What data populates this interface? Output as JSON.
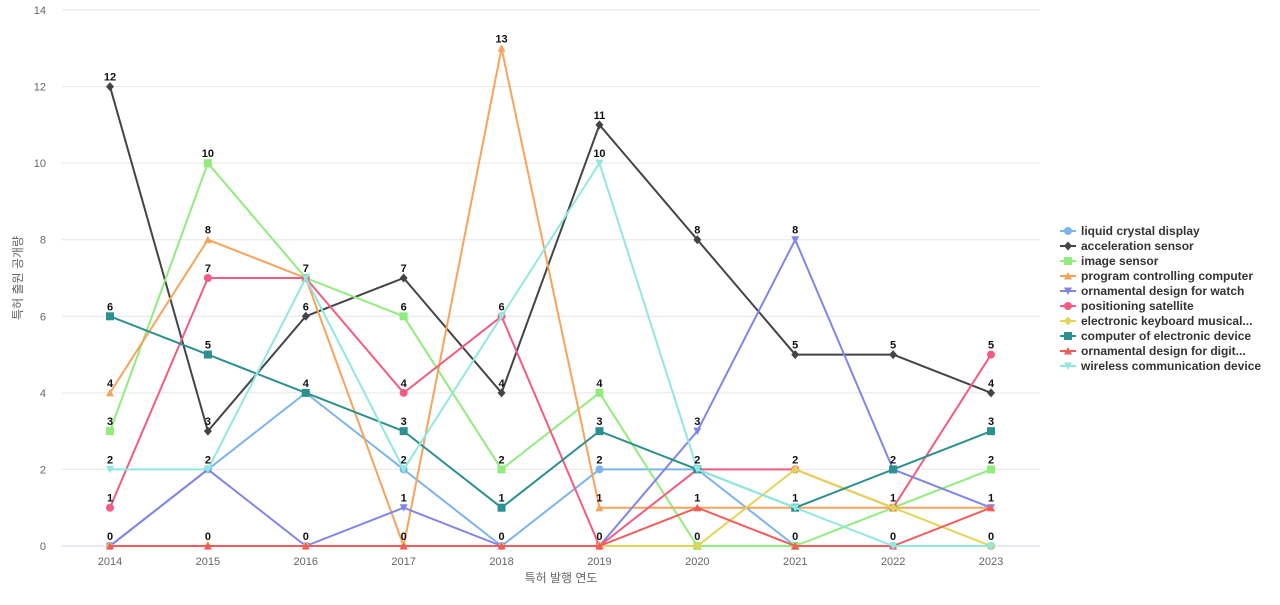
{
  "chart_data": {
    "type": "line",
    "title": "",
    "xlabel": "특허 발행 연도",
    "ylabel": "특허 출원 공개량",
    "ylim": [
      0,
      14
    ],
    "yticks": [
      0,
      2,
      4,
      6,
      8,
      10,
      12,
      14
    ],
    "x": [
      "2014",
      "2015",
      "2016",
      "2017",
      "2018",
      "2019",
      "2020",
      "2021",
      "2022",
      "2023"
    ],
    "grid": true,
    "legend_position": "right",
    "series": [
      {
        "name": "liquid crystal display",
        "legend_label": "liquid crystal display",
        "color": "#7cb5ec",
        "marker": "circle",
        "values": [
          0,
          2,
          4,
          2,
          0,
          2,
          2,
          0,
          0,
          0
        ]
      },
      {
        "name": "acceleration sensor",
        "legend_label": "acceleration sensor",
        "color": "#434348",
        "marker": "diamond",
        "values": [
          12,
          3,
          6,
          7,
          4,
          11,
          8,
          5,
          5,
          4
        ]
      },
      {
        "name": "image sensor",
        "legend_label": "image sensor",
        "color": "#90ed7d",
        "marker": "square",
        "values": [
          3,
          10,
          7,
          6,
          2,
          4,
          0,
          0,
          1,
          2
        ]
      },
      {
        "name": "program controlling computer",
        "legend_label": "program controlling computer",
        "color": "#f7a35c",
        "marker": "triangle",
        "values": [
          4,
          8,
          7,
          0,
          13,
          1,
          1,
          1,
          1,
          1
        ]
      },
      {
        "name": "ornamental design for watch",
        "legend_label": "ornamental design for watch",
        "color": "#8085e9",
        "marker": "triangle-down",
        "values": [
          0,
          2,
          0,
          1,
          0,
          0,
          3,
          8,
          2,
          1
        ]
      },
      {
        "name": "positioning satellite",
        "legend_label": "positioning satellite",
        "color": "#f15c80",
        "marker": "circle",
        "values": [
          1,
          7,
          7,
          4,
          6,
          0,
          2,
          2,
          1,
          5
        ]
      },
      {
        "name": "electronic keyboard musical...",
        "legend_label": "electronic keyboard musical...",
        "color": "#e4d354",
        "marker": "diamond",
        "values": [
          0,
          0,
          0,
          0,
          0,
          0,
          0,
          2,
          1,
          0
        ]
      },
      {
        "name": "computer of electronic device",
        "legend_label": "computer of electronic device",
        "color": "#2b908f",
        "marker": "square",
        "values": [
          6,
          5,
          4,
          3,
          1,
          3,
          2,
          1,
          2,
          3
        ]
      },
      {
        "name": "ornamental design for digit...",
        "legend_label": "ornamental design for digit...",
        "color": "#f45b5b",
        "marker": "triangle",
        "values": [
          0,
          0,
          0,
          0,
          0,
          0,
          1,
          0,
          0,
          1
        ]
      },
      {
        "name": "wireless communication device",
        "legend_label": "wireless communication device",
        "color": "#91e8e1",
        "marker": "triangle-down",
        "values": [
          2,
          2,
          7,
          2,
          6,
          10,
          2,
          1,
          0,
          0
        ]
      }
    ],
    "data_labels": [
      {
        "x": "2014",
        "series": "acceleration sensor",
        "text": "12"
      },
      {
        "x": "2014",
        "series": "computer of electronic device",
        "text": "6"
      },
      {
        "x": "2014",
        "series": "program controlling computer",
        "text": "4"
      },
      {
        "x": "2014",
        "series": "image sensor",
        "text": "3"
      },
      {
        "x": "2014",
        "series": "wireless communication device",
        "text": "2"
      },
      {
        "x": "2014",
        "series": "positioning satellite",
        "text": "1"
      },
      {
        "x": "2014",
        "series": "ornamental design for watch",
        "text": "0"
      },
      {
        "x": "2015",
        "series": "image sensor",
        "text": "10"
      },
      {
        "x": "2015",
        "series": "program controlling computer",
        "text": "8"
      },
      {
        "x": "2015",
        "series": "positioning satellite",
        "text": "7"
      },
      {
        "x": "2015",
        "series": "computer of electronic device",
        "text": "5"
      },
      {
        "x": "2015",
        "series": "acceleration sensor",
        "text": "3"
      },
      {
        "x": "2015",
        "series": "liquid crystal display",
        "text": "2"
      },
      {
        "x": "2015",
        "series": "electronic keyboard musical...",
        "text": "0"
      },
      {
        "x": "2016",
        "series": "image sensor",
        "text": "7"
      },
      {
        "x": "2016",
        "series": "acceleration sensor",
        "text": "6"
      },
      {
        "x": "2016",
        "series": "liquid crystal display",
        "text": "4"
      },
      {
        "x": "2016",
        "series": "ornamental design for watch",
        "text": "0"
      },
      {
        "x": "2017",
        "series": "acceleration sensor",
        "text": "7"
      },
      {
        "x": "2017",
        "series": "image sensor",
        "text": "6"
      },
      {
        "x": "2017",
        "series": "positioning satellite",
        "text": "4"
      },
      {
        "x": "2017",
        "series": "computer of electronic device",
        "text": "3"
      },
      {
        "x": "2017",
        "series": "liquid crystal display",
        "text": "2"
      },
      {
        "x": "2017",
        "series": "ornamental design for watch",
        "text": "1"
      },
      {
        "x": "2017",
        "series": "program controlling computer",
        "text": "0"
      },
      {
        "x": "2018",
        "series": "program controlling computer",
        "text": "13"
      },
      {
        "x": "2018",
        "series": "positioning satellite",
        "text": "6"
      },
      {
        "x": "2018",
        "series": "acceleration sensor",
        "text": "4"
      },
      {
        "x": "2018",
        "series": "image sensor",
        "text": "2"
      },
      {
        "x": "2018",
        "series": "computer of electronic device",
        "text": "1"
      },
      {
        "x": "2018",
        "series": "liquid crystal display",
        "text": "0"
      },
      {
        "x": "2019",
        "series": "acceleration sensor",
        "text": "11"
      },
      {
        "x": "2019",
        "series": "wireless communication device",
        "text": "10"
      },
      {
        "x": "2019",
        "series": "image sensor",
        "text": "4"
      },
      {
        "x": "2019",
        "series": "computer of electronic device",
        "text": "3"
      },
      {
        "x": "2019",
        "series": "liquid crystal display",
        "text": "2"
      },
      {
        "x": "2019",
        "series": "program controlling computer",
        "text": "1"
      },
      {
        "x": "2019",
        "series": "positioning satellite",
        "text": "0"
      },
      {
        "x": "2020",
        "series": "acceleration sensor",
        "text": "8"
      },
      {
        "x": "2020",
        "series": "ornamental design for watch",
        "text": "3"
      },
      {
        "x": "2020",
        "series": "liquid crystal display",
        "text": "2"
      },
      {
        "x": "2020",
        "series": "program controlling computer",
        "text": "1"
      },
      {
        "x": "2020",
        "series": "image sensor",
        "text": "0"
      },
      {
        "x": "2021",
        "series": "ornamental design for watch",
        "text": "8"
      },
      {
        "x": "2021",
        "series": "acceleration sensor",
        "text": "5"
      },
      {
        "x": "2021",
        "series": "electronic keyboard musical...",
        "text": "2"
      },
      {
        "x": "2021",
        "series": "computer of electronic device",
        "text": "1"
      },
      {
        "x": "2021",
        "series": "liquid crystal display",
        "text": "0"
      },
      {
        "x": "2022",
        "series": "acceleration sensor",
        "text": "5"
      },
      {
        "x": "2022",
        "series": "computer of electronic device",
        "text": "2"
      },
      {
        "x": "2022",
        "series": "program controlling computer",
        "text": "1"
      },
      {
        "x": "2022",
        "series": "liquid crystal display",
        "text": "0"
      },
      {
        "x": "2023",
        "series": "positioning satellite",
        "text": "5"
      },
      {
        "x": "2023",
        "series": "acceleration sensor",
        "text": "4"
      },
      {
        "x": "2023",
        "series": "computer of electronic device",
        "text": "3"
      },
      {
        "x": "2023",
        "series": "image sensor",
        "text": "2"
      },
      {
        "x": "2023",
        "series": "ornamental design for watch",
        "text": "1"
      },
      {
        "x": "2023",
        "series": "liquid crystal display",
        "text": "0"
      }
    ]
  }
}
